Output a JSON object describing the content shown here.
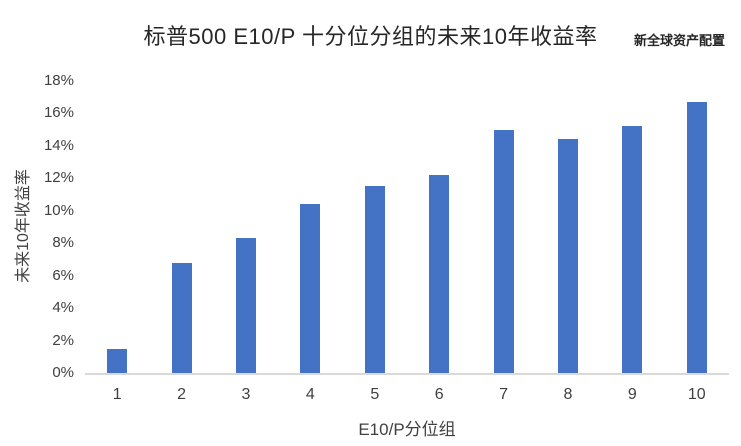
{
  "header": {
    "brand_label": "新全球资产配置"
  },
  "chart_data": {
    "type": "bar",
    "title": "标普500 E10/P 十分位分组的未来10年收益率",
    "categories": [
      "1",
      "2",
      "3",
      "4",
      "5",
      "6",
      "7",
      "8",
      "9",
      "10"
    ],
    "values": [
      1.5,
      6.8,
      8.3,
      10.4,
      11.5,
      12.2,
      15.0,
      14.4,
      15.2,
      16.7
    ],
    "xlabel": "E10/P分位组",
    "ylabel": "未来10年收益率",
    "ylim": [
      0,
      18
    ],
    "ytick_step": 2,
    "ytick_suffix": "%",
    "grid": false,
    "legend": false,
    "colors": {
      "bar": "#4472C4",
      "axis_line": "#D9D9D9",
      "tick_text": "#404040",
      "title_text": "#262626"
    }
  }
}
